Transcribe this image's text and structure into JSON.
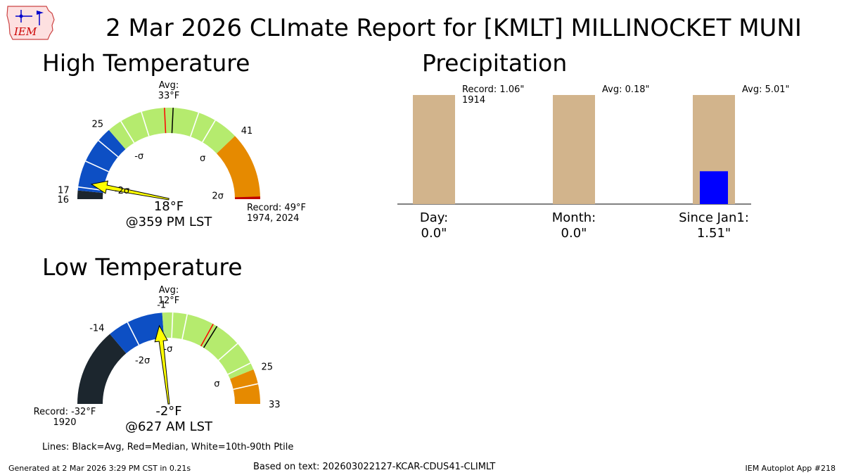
{
  "logo": {
    "text": "IEM"
  },
  "title": "2 Mar 2026 CLImate Report for [KMLT] MILLINOCKET MUNI",
  "high_section_title": "High Temperature",
  "low_section_title": "Low Temperature",
  "precip_section_title": "Precipitation",
  "legend_note": "Lines: Black=Avg, Red=Median, White=10th-90th Ptile",
  "footer": {
    "generated": "Generated at 2 Mar 2026 3:29 PM CST in 0.21s",
    "source": "Based on text: 202603022127-KCAR-CDUS41-CLIMLT",
    "app": "IEM Autoplot App #218"
  },
  "colors": {
    "very_cold": "#1c262e",
    "cold": "#0d4fc4",
    "normal": "#b5eb6e",
    "warm": "#e68a00",
    "hot": "#c00000",
    "needle": "#ffff00",
    "precip_avg": "#d2b48c",
    "precip_obs": "#0000ff"
  },
  "chart_data": [
    {
      "type": "gauge",
      "name": "high",
      "range": [
        16,
        49
      ],
      "value": 18,
      "value_label": "18°F",
      "time_label": "@359 PM LST",
      "average": 33,
      "median": 32,
      "avg_label": "Avg:\n33°F",
      "record_label": "Record: 49°F\n1974, 2024",
      "record_label_side": "right",
      "segments": [
        {
          "from": 16,
          "to": 17,
          "color": "very_cold"
        },
        {
          "from": 17,
          "to": 25,
          "color": "cold"
        },
        {
          "from": 25,
          "to": 41,
          "color": "normal"
        },
        {
          "from": 41,
          "to": 49,
          "color": "warm"
        },
        {
          "from": 48.7,
          "to": 49,
          "color": "hot"
        }
      ],
      "percentile_lines": [
        17.4,
        20.5,
        23.3,
        26.7,
        29.3,
        36.0,
        38.1
      ],
      "range_labels": [
        {
          "value": 16,
          "text": "16"
        },
        {
          "value": 17,
          "text": "17"
        },
        {
          "value": 25,
          "text": "25"
        },
        {
          "value": 41,
          "text": "41"
        }
      ],
      "sigma_labels": [
        {
          "value": 17.6,
          "text": "-2σ",
          "offset": 1
        },
        {
          "value": 25.4,
          "text": "-σ",
          "offset": 0
        },
        {
          "value": 40.2,
          "text": "σ",
          "offset": 0
        },
        {
          "value": 48.4,
          "text": "2σ",
          "offset": 0
        }
      ]
    },
    {
      "type": "gauge",
      "name": "low",
      "range": [
        -32,
        33
      ],
      "value": -2,
      "value_label": "-2°F",
      "time_label": "@627 AM LST",
      "average": 12,
      "median": 11,
      "avg_label": "Avg:\n12°F",
      "record_label": "Record: -32°F\n1920",
      "record_label_side": "left",
      "segments": [
        {
          "from": -32,
          "to": -14,
          "color": "very_cold"
        },
        {
          "from": -14,
          "to": -1,
          "color": "cold"
        },
        {
          "from": -1,
          "to": 25,
          "color": "normal"
        },
        {
          "from": 25,
          "to": 33,
          "color": "warm"
        }
      ],
      "percentile_lines": [
        -9.2,
        1.4,
        4.7,
        18.1,
        23.4,
        28.4
      ],
      "range_labels": [
        {
          "value": -14,
          "text": "-14"
        },
        {
          "value": -1,
          "text": "-1"
        },
        {
          "value": 25,
          "text": "25"
        },
        {
          "value": 33,
          "text": "33"
        }
      ],
      "sigma_labels": [
        {
          "value": -13.2,
          "text": "-2σ",
          "offset": 0
        },
        {
          "value": 0.2,
          "text": "-σ",
          "offset": 0
        },
        {
          "value": 25.2,
          "text": "σ",
          "offset": 0
        }
      ]
    },
    {
      "type": "bar",
      "name": "precipitation",
      "categories": [
        "Day:",
        "Month:",
        "Since Jan1:"
      ],
      "observed_labels": [
        "0.0\"",
        "0.0\"",
        "1.51\""
      ],
      "observed_fraction_of_average": [
        0.0,
        0.0,
        0.301
      ],
      "average_labels": [
        "Record: 1.06\"\n1914",
        "Avg: 0.18\"",
        "Avg: 5.01\""
      ]
    }
  ]
}
